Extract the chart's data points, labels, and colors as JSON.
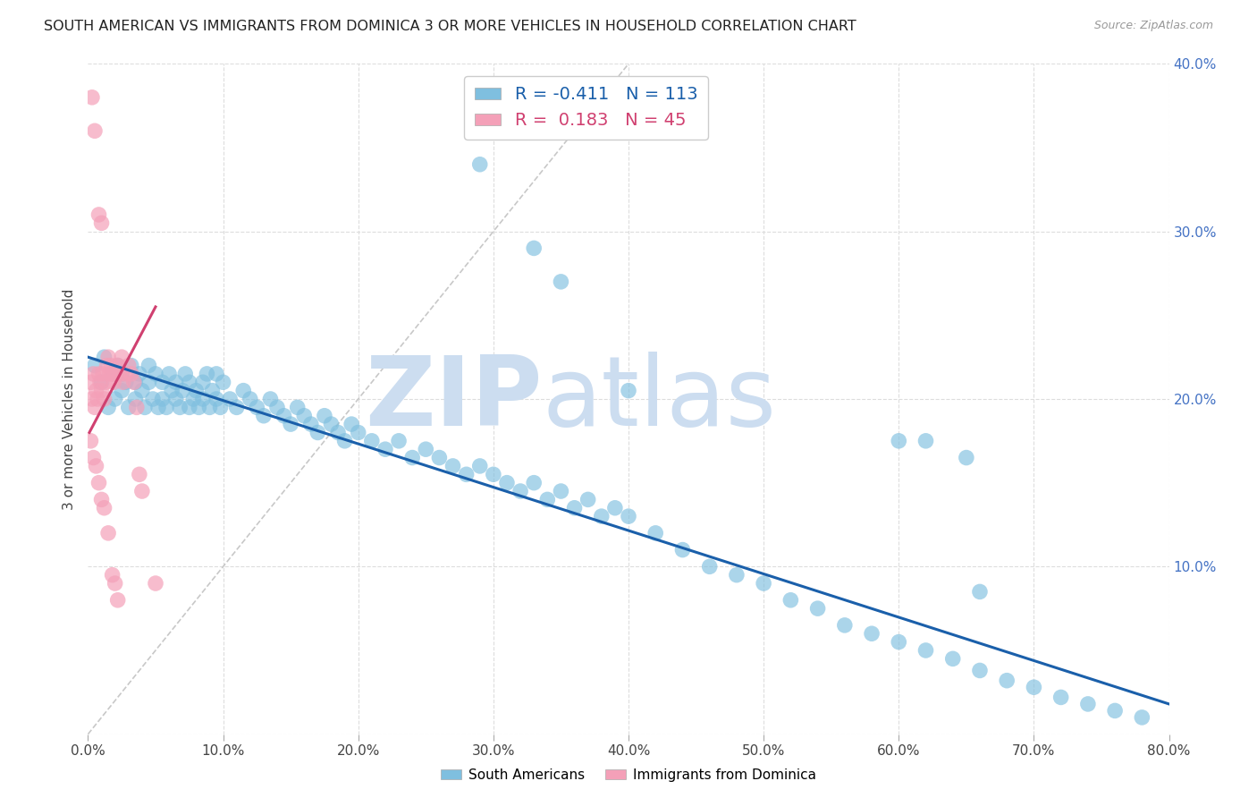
{
  "title": "SOUTH AMERICAN VS IMMIGRANTS FROM DOMINICA 3 OR MORE VEHICLES IN HOUSEHOLD CORRELATION CHART",
  "source": "Source: ZipAtlas.com",
  "ylabel": "3 or more Vehicles in Household",
  "xlim": [
    0.0,
    0.8
  ],
  "ylim": [
    0.0,
    0.4
  ],
  "xticks": [
    0.0,
    0.1,
    0.2,
    0.3,
    0.4,
    0.5,
    0.6,
    0.7,
    0.8
  ],
  "yticks": [
    0.0,
    0.1,
    0.2,
    0.3,
    0.4
  ],
  "blue_R": "-0.411",
  "blue_N": "113",
  "pink_R": "0.183",
  "pink_N": "45",
  "blue_color": "#7fbfdf",
  "pink_color": "#f4a0b8",
  "blue_line_color": "#1a5faa",
  "pink_line_color": "#d04070",
  "ref_line_color": "#c8c8c8",
  "watermark": "ZIPatlas",
  "watermark_color": "#ccddf0",
  "legend_blue_label": "South Americans",
  "legend_pink_label": "Immigrants from Dominica",
  "background_color": "#ffffff",
  "grid_color": "#dddddd",
  "right_axis_color": "#4472c4",
  "title_fontsize": 11.5,
  "blue_line_x0": 0.0,
  "blue_line_y0": 0.225,
  "blue_line_x1": 0.8,
  "blue_line_y1": 0.018,
  "pink_line_x0": 0.001,
  "pink_line_y0": 0.18,
  "pink_line_x1": 0.05,
  "pink_line_y1": 0.255,
  "ref_line_x0": 0.0,
  "ref_line_y0": 0.0,
  "ref_line_x1": 0.4,
  "ref_line_y1": 0.4,
  "blue_scatter_x": [
    0.005,
    0.01,
    0.012,
    0.015,
    0.018,
    0.02,
    0.022,
    0.025,
    0.025,
    0.028,
    0.03,
    0.032,
    0.035,
    0.035,
    0.038,
    0.04,
    0.042,
    0.045,
    0.045,
    0.048,
    0.05,
    0.052,
    0.055,
    0.055,
    0.058,
    0.06,
    0.062,
    0.065,
    0.065,
    0.068,
    0.07,
    0.072,
    0.075,
    0.075,
    0.078,
    0.08,
    0.082,
    0.085,
    0.085,
    0.088,
    0.09,
    0.092,
    0.095,
    0.095,
    0.098,
    0.1,
    0.105,
    0.11,
    0.115,
    0.12,
    0.125,
    0.13,
    0.135,
    0.14,
    0.145,
    0.15,
    0.155,
    0.16,
    0.165,
    0.17,
    0.175,
    0.18,
    0.185,
    0.19,
    0.195,
    0.2,
    0.21,
    0.22,
    0.23,
    0.24,
    0.25,
    0.26,
    0.27,
    0.28,
    0.29,
    0.3,
    0.31,
    0.32,
    0.33,
    0.34,
    0.35,
    0.36,
    0.37,
    0.38,
    0.39,
    0.4,
    0.42,
    0.44,
    0.46,
    0.48,
    0.5,
    0.52,
    0.54,
    0.56,
    0.58,
    0.6,
    0.62,
    0.64,
    0.66,
    0.68,
    0.7,
    0.72,
    0.74,
    0.76,
    0.78,
    0.29,
    0.33,
    0.35,
    0.4,
    0.6,
    0.62,
    0.65,
    0.66
  ],
  "blue_scatter_y": [
    0.22,
    0.21,
    0.225,
    0.195,
    0.215,
    0.2,
    0.22,
    0.215,
    0.205,
    0.21,
    0.195,
    0.22,
    0.21,
    0.2,
    0.215,
    0.205,
    0.195,
    0.21,
    0.22,
    0.2,
    0.215,
    0.195,
    0.21,
    0.2,
    0.195,
    0.215,
    0.205,
    0.2,
    0.21,
    0.195,
    0.205,
    0.215,
    0.195,
    0.21,
    0.2,
    0.205,
    0.195,
    0.21,
    0.2,
    0.215,
    0.195,
    0.205,
    0.2,
    0.215,
    0.195,
    0.21,
    0.2,
    0.195,
    0.205,
    0.2,
    0.195,
    0.19,
    0.2,
    0.195,
    0.19,
    0.185,
    0.195,
    0.19,
    0.185,
    0.18,
    0.19,
    0.185,
    0.18,
    0.175,
    0.185,
    0.18,
    0.175,
    0.17,
    0.175,
    0.165,
    0.17,
    0.165,
    0.16,
    0.155,
    0.16,
    0.155,
    0.15,
    0.145,
    0.15,
    0.14,
    0.145,
    0.135,
    0.14,
    0.13,
    0.135,
    0.13,
    0.12,
    0.11,
    0.1,
    0.095,
    0.09,
    0.08,
    0.075,
    0.065,
    0.06,
    0.055,
    0.05,
    0.045,
    0.038,
    0.032,
    0.028,
    0.022,
    0.018,
    0.014,
    0.01,
    0.34,
    0.29,
    0.27,
    0.205,
    0.175,
    0.175,
    0.165,
    0.085
  ],
  "pink_scatter_x": [
    0.002,
    0.003,
    0.004,
    0.005,
    0.006,
    0.007,
    0.008,
    0.009,
    0.01,
    0.011,
    0.012,
    0.013,
    0.014,
    0.015,
    0.016,
    0.017,
    0.018,
    0.019,
    0.02,
    0.022,
    0.024,
    0.025,
    0.026,
    0.028,
    0.03,
    0.032,
    0.034,
    0.036,
    0.038,
    0.04,
    0.002,
    0.004,
    0.006,
    0.008,
    0.01,
    0.012,
    0.015,
    0.018,
    0.02,
    0.022,
    0.003,
    0.005,
    0.008,
    0.01,
    0.05
  ],
  "pink_scatter_y": [
    0.21,
    0.2,
    0.215,
    0.195,
    0.205,
    0.2,
    0.215,
    0.21,
    0.205,
    0.215,
    0.2,
    0.21,
    0.22,
    0.225,
    0.215,
    0.22,
    0.215,
    0.21,
    0.215,
    0.22,
    0.215,
    0.225,
    0.21,
    0.215,
    0.22,
    0.215,
    0.21,
    0.195,
    0.155,
    0.145,
    0.175,
    0.165,
    0.16,
    0.15,
    0.14,
    0.135,
    0.12,
    0.095,
    0.09,
    0.08,
    0.38,
    0.36,
    0.31,
    0.305,
    0.09
  ]
}
